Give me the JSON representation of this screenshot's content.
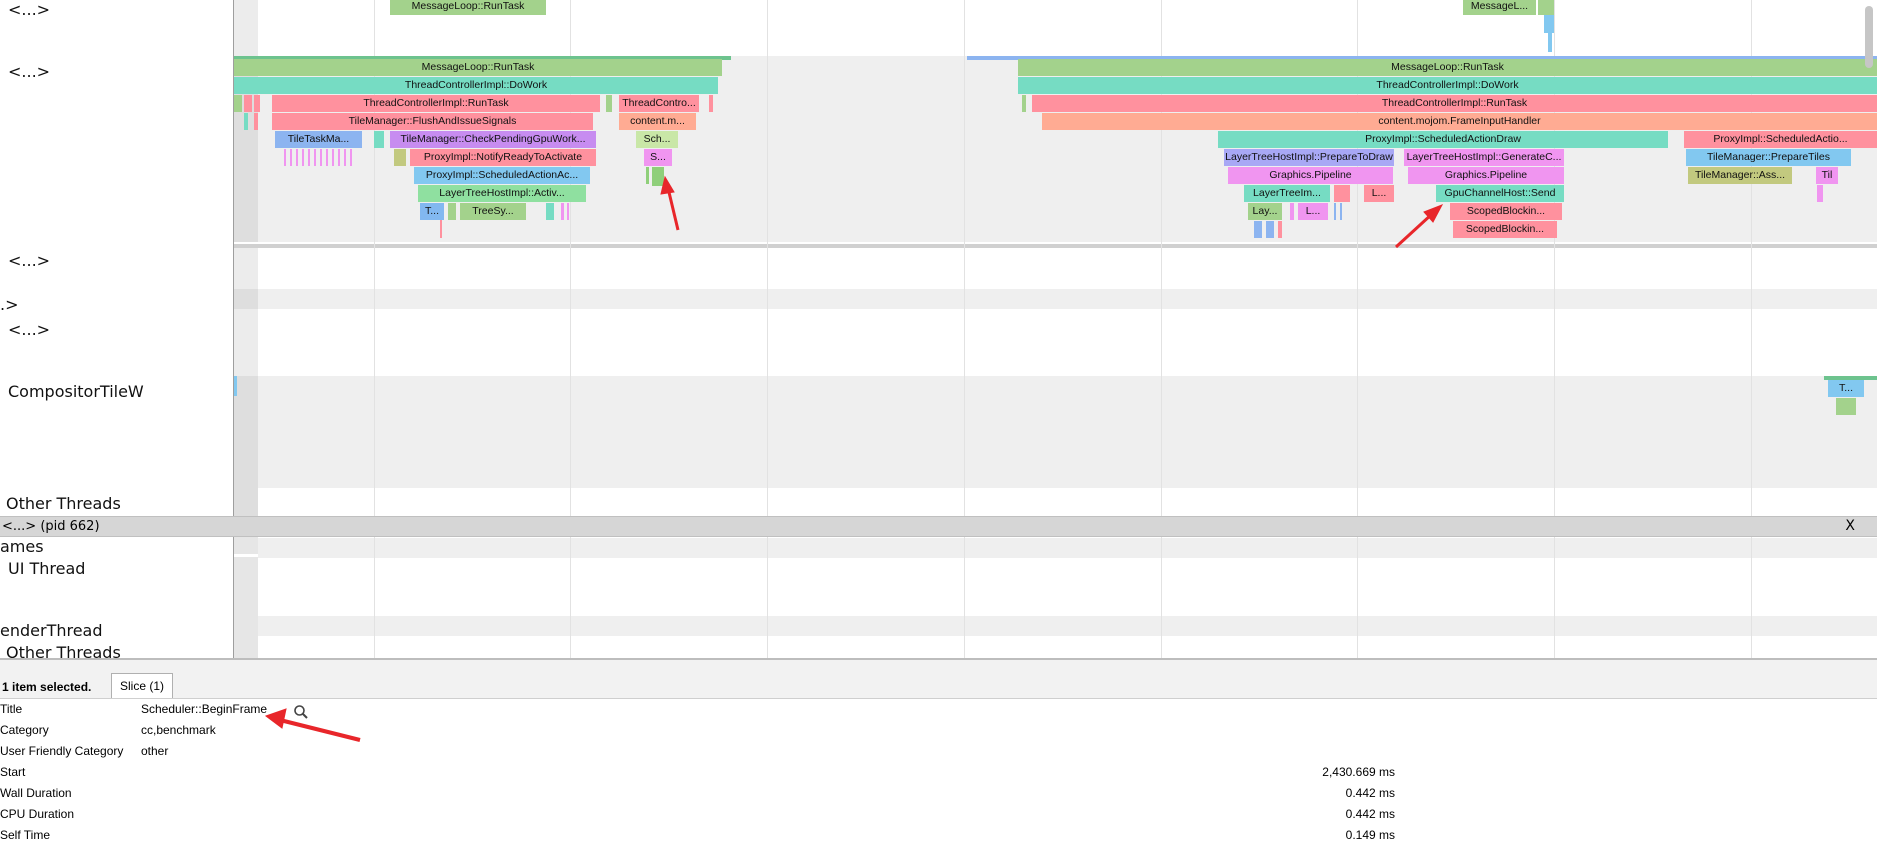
{
  "tracks": {
    "row1": "<...>",
    "row2": "<...>",
    "row3": "<...>",
    "row4": ".>",
    "row5": "<...>",
    "compositor": "CompositorTileW",
    "other_threads_1": "Other Threads",
    "pid_bar": "<...> (pid 662)",
    "close": "X",
    "frames": "ames",
    "ui_thread": "UI Thread",
    "render_thread": "enderThread",
    "other_threads_2": "Other Threads"
  },
  "slices": {
    "top_left": "MessageLoop::RunTask",
    "top_right": "MessageL...",
    "l_d0": "MessageLoop::RunTask",
    "l_d1": "ThreadControllerImpl::DoWork",
    "l_d2a": "ThreadControllerImpl::RunTask",
    "l_d2b": "ThreadContro...",
    "l_d3a": "TileManager::FlushAndIssueSignals",
    "l_d3b": "content.m...",
    "l_d4a": "TileTaskMa...",
    "l_d4b": "TileManager::CheckPendingGpuWork...",
    "l_d4c": "Sch...",
    "l_d5a": "ProxyImpl::NotifyReadyToActivate",
    "l_d5b": "S...",
    "l_d6a": "ProxyImpl::ScheduledActionAc...",
    "l_d7a": "LayerTreeHostImpl::Activ...",
    "l_d8a": "T...",
    "l_d8b": "TreeSy...",
    "r_d0": "MessageLoop::RunTask",
    "r_d1": "ThreadControllerImpl::DoWork",
    "r_d2": "ThreadControllerImpl::RunTask",
    "r_d3": "content.mojom.FrameInputHandler",
    "r_d4a": "ProxyImpl::ScheduledActionDraw",
    "r_d4b": "ProxyImpl::ScheduledActio...",
    "r_d5a": "LayerTreeHostImpl::PrepareToDraw",
    "r_d5b": "LayerTreeHostImpl::GenerateC...",
    "r_d5c": "TileManager::PrepareTiles",
    "r_d6a": "Graphics.Pipeline",
    "r_d6b": "Graphics.Pipeline",
    "r_d6c": "TileManager::Ass...",
    "r_d6d": "Til",
    "r_d7a": "LayerTreeIm...",
    "r_d7b": "L...",
    "r_d7c": "GpuChannelHost::Send",
    "r_d8a": "Lay...",
    "r_d8b": "L...",
    "r_d8c": "ScopedBlockin...",
    "r_d9": "ScopedBlockin...",
    "comp_slice": "T..."
  },
  "panel": {
    "selection": "1 item selected.",
    "tab": "Slice (1)",
    "rows": [
      {
        "key": "Title",
        "value": "Scheduler::BeginFrame"
      },
      {
        "key": "Category",
        "value": "cc,benchmark"
      },
      {
        "key": "User Friendly Category",
        "value": "other"
      },
      {
        "key": "Start",
        "value": "2,430.669 ms"
      },
      {
        "key": "Wall Duration",
        "value": "0.442 ms"
      },
      {
        "key": "CPU Duration",
        "value": "0.442 ms"
      },
      {
        "key": "Self Time",
        "value": "0.149 ms"
      }
    ]
  },
  "colors": {
    "annotation_arrow": "#e8262a",
    "message_loop": "#a3d28c",
    "do_work": "#76dcc3",
    "run_task": "#ff919e",
    "mojo": "#ffab93",
    "schedule": "#f095f0"
  }
}
